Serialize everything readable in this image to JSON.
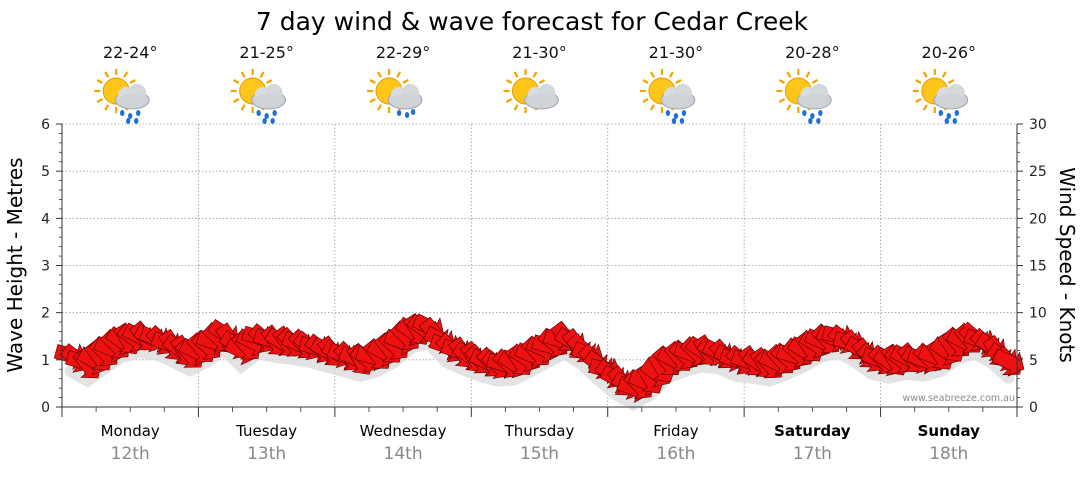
{
  "title": "7 day wind & wave forecast for Cedar Creek",
  "watermark": "www.seabreeze.com.au",
  "colors": {
    "arrow_fill": "#ee1111",
    "arrow_stroke": "#550000",
    "grid": "#9a9a9a",
    "axis": "#333333",
    "shadow": "#dcdcdc",
    "watermark": "#8a8a8a"
  },
  "days": [
    {
      "name": "Monday",
      "date": "12th",
      "temp": "22-24°",
      "icon": "sun-cloud-rain-icon",
      "bold": false
    },
    {
      "name": "Tuesday",
      "date": "13th",
      "temp": "21-25°",
      "icon": "sun-cloud-rain-icon",
      "bold": false
    },
    {
      "name": "Wednesday",
      "date": "14th",
      "temp": "22-29°",
      "icon": "sun-cloud-showers-icon",
      "bold": false
    },
    {
      "name": "Thursday",
      "date": "15th",
      "temp": "21-30°",
      "icon": "sun-cloud-icon",
      "bold": false
    },
    {
      "name": "Friday",
      "date": "16th",
      "temp": "21-30°",
      "icon": "sun-cloud-rain-icon",
      "bold": false
    },
    {
      "name": "Saturday",
      "date": "17th",
      "temp": "20-28°",
      "icon": "sun-cloud-rain-icon",
      "bold": true
    },
    {
      "name": "Sunday",
      "date": "18th",
      "temp": "20-26°",
      "icon": "sun-cloud-rain-icon",
      "bold": true
    }
  ],
  "chart_data": {
    "type": "line",
    "title": "7 day wind & wave forecast for Cedar Creek",
    "y_left": {
      "label": "Wave Height - Metres",
      "range": [
        0,
        6
      ],
      "ticks": [
        "0",
        "1",
        "2",
        "3",
        "4",
        "5",
        "6"
      ]
    },
    "y_right": {
      "label": "Wind Speed - Knots",
      "range": [
        0,
        30
      ],
      "ticks": [
        "0",
        "5",
        "10",
        "15",
        "20",
        "25",
        "30"
      ]
    },
    "grid": true,
    "categories": [
      "Monday 12th",
      "Tuesday 13th",
      "Wednesday 14th",
      "Thursday 15th",
      "Friday 16th",
      "Saturday 17th",
      "Sunday 18th"
    ],
    "wind_knots_samples_per_day": 8,
    "wind_knots": [
      [
        5.5,
        4.5,
        5.8,
        7.0,
        7.5,
        7.3,
        6.5,
        5.6
      ],
      [
        6.5,
        7.8,
        6.0,
        7.4,
        7.0,
        6.8,
        6.5,
        6.0
      ],
      [
        5.5,
        5.0,
        5.5,
        6.5,
        8.0,
        8.5,
        6.5,
        5.7
      ],
      [
        5.0,
        4.5,
        4.6,
        5.5,
        6.5,
        7.4,
        6.2,
        4.5
      ],
      [
        3.0,
        2.0,
        3.0,
        4.8,
        5.5,
        6.0,
        5.8,
        5.0
      ],
      [
        4.8,
        4.5,
        5.2,
        6.0,
        7.0,
        7.5,
        6.5,
        5.2
      ],
      [
        4.8,
        5.2,
        5.0,
        5.5,
        6.8,
        7.4,
        6.4,
        4.8
      ]
    ],
    "wave_height_m": [
      0.0,
      0.0,
      0.0,
      0.0,
      0.0,
      0.0,
      0.0
    ]
  }
}
